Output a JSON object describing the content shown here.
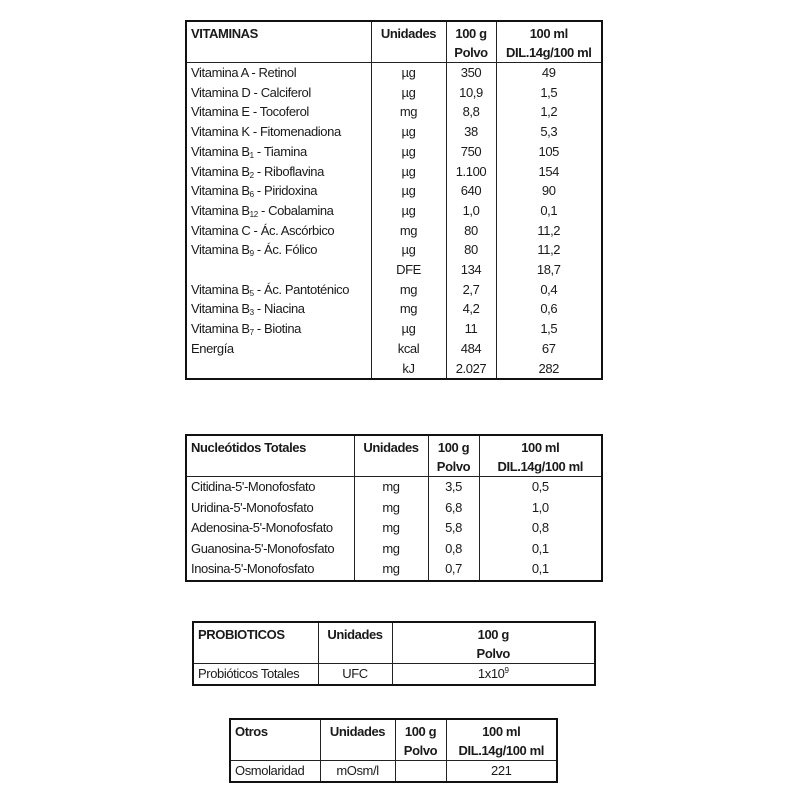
{
  "vitaminas": {
    "headers": [
      "VITAMINAS",
      "Unidades",
      "100 g",
      "Polvo",
      "100 ml",
      "DIL.14g/100 ml"
    ],
    "rows": [
      {
        "name": "Vitamina A - Retinol",
        "sub": "",
        "rest": "",
        "unit": "µg",
        "polvo": "350",
        "dil": "49"
      },
      {
        "name": "Vitamina D - Calciferol",
        "sub": "",
        "rest": "",
        "unit": "µg",
        "polvo": "10,9",
        "dil": "1,5"
      },
      {
        "name": "Vitamina E - Tocoferol",
        "sub": "",
        "rest": "",
        "unit": "mg",
        "polvo": "8,8",
        "dil": "1,2"
      },
      {
        "name": "Vitamina K - Fitomenadiona",
        "sub": "",
        "rest": "",
        "unit": "µg",
        "polvo": "38",
        "dil": "5,3"
      },
      {
        "name": "Vitamina B",
        "sub": "1",
        "rest": " - Tiamina",
        "unit": "µg",
        "polvo": "750",
        "dil": "105"
      },
      {
        "name": "Vitamina B",
        "sub": "2",
        "rest": " - Riboflavina",
        "unit": "µg",
        "polvo": "1.100",
        "dil": "154"
      },
      {
        "name": "Vitamina B",
        "sub": "6",
        "rest": " - Piridoxina",
        "unit": "µg",
        "polvo": "640",
        "dil": "90"
      },
      {
        "name": "Vitamina B",
        "sub": "12",
        "rest": " - Cobalamina",
        "unit": "µg",
        "polvo": "1,0",
        "dil": "0,1"
      },
      {
        "name": "Vitamina C - Ác. Ascórbico",
        "sub": "",
        "rest": "",
        "unit": "mg",
        "polvo": "80",
        "dil": "11,2"
      },
      {
        "name": "Vitamina B",
        "sub": "9",
        "rest": " - Ác. Fólico",
        "unit": "µg",
        "polvo": "80",
        "dil": "11,2"
      },
      {
        "name": "",
        "sub": "",
        "rest": "",
        "unit": "DFE",
        "polvo": "134",
        "dil": "18,7"
      },
      {
        "name": "Vitamina B",
        "sub": "5",
        "rest": " - Ác. Pantoténico",
        "unit": "mg",
        "polvo": "2,7",
        "dil": "0,4"
      },
      {
        "name": "Vitamina B",
        "sub": "3",
        "rest": " - Niacina",
        "unit": "mg",
        "polvo": "4,2",
        "dil": "0,6"
      },
      {
        "name": "Vitamina B",
        "sub": "7",
        "rest": " - Biotina",
        "unit": "µg",
        "polvo": "11",
        "dil": "1,5"
      },
      {
        "name": "Energía",
        "sub": "",
        "rest": "",
        "unit": "kcal",
        "polvo": "484",
        "dil": "67"
      },
      {
        "name": "",
        "sub": "",
        "rest": "",
        "unit": "kJ",
        "polvo": "2.027",
        "dil": "282"
      }
    ]
  },
  "nucleotidos": {
    "headers": [
      "Nucleótidos Totales",
      "Unidades",
      "100 g",
      "Polvo",
      "100 ml",
      "DIL.14g/100 ml"
    ],
    "rows": [
      {
        "name": "Citidina-5'-Monofosfato",
        "unit": "mg",
        "polvo": "3,5",
        "dil": "0,5"
      },
      {
        "name": "Uridina-5'-Monofosfato",
        "unit": "mg",
        "polvo": "6,8",
        "dil": "1,0"
      },
      {
        "name": "Adenosina-5'-Monofosfato",
        "unit": "mg",
        "polvo": "5,8",
        "dil": "0,8"
      },
      {
        "name": "Guanosina-5'-Monofosfato",
        "unit": "mg",
        "polvo": "0,8",
        "dil": "0,1"
      },
      {
        "name": "Inosina-5'-Monofosfato",
        "unit": "mg",
        "polvo": "0,7",
        "dil": "0,1"
      }
    ]
  },
  "probioticos": {
    "headers": [
      "PROBIOTICOS",
      "Unidades",
      "100 g",
      "Polvo"
    ],
    "row": {
      "name": "Probióticos Totales",
      "unit": "UFC",
      "base": "1x10",
      "exp": "9"
    }
  },
  "otros": {
    "headers": [
      "Otros",
      "Unidades",
      "100 g",
      "Polvo",
      "100 ml",
      "DIL.14g/100 ml"
    ],
    "row": {
      "name": "Osmolaridad",
      "unit": "mOsm/l",
      "polvo": "",
      "dil": "221"
    }
  }
}
